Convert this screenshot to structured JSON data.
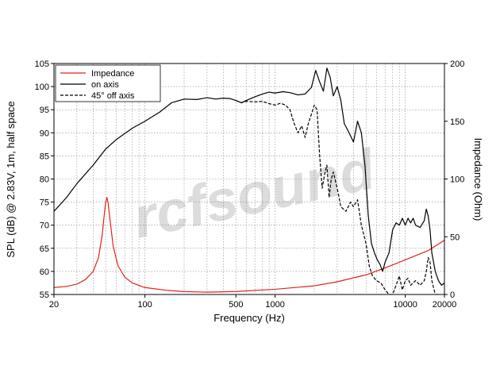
{
  "chart_data": {
    "type": "line",
    "title": "",
    "xlabel": "Frequency (Hz)",
    "ylabel": "SPL (dB) @ 2.83V, 1m, half space",
    "y2label": "Impedance (Ohm)",
    "x_scale": "log",
    "xlim": [
      20,
      20000
    ],
    "ylim": [
      55,
      105
    ],
    "y2lim": [
      0,
      200
    ],
    "x_ticks": [
      {
        "value": 20,
        "label": "20"
      },
      {
        "value": 100,
        "label": "100"
      },
      {
        "value": 500,
        "label": "500"
      },
      {
        "value": 1000,
        "label": "1000"
      },
      {
        "value": 10000,
        "label": "10000"
      },
      {
        "value": 20000,
        "label": "20000"
      }
    ],
    "y_ticks": [
      "55",
      "60",
      "65",
      "70",
      "75",
      "80",
      "85",
      "90",
      "95",
      "100",
      "105"
    ],
    "y2_ticks": [
      "0",
      "50",
      "100",
      "150",
      "200"
    ],
    "grid": true,
    "legend_position": "top-left",
    "watermark": "rcfsound",
    "series": [
      {
        "name": "Impedance",
        "axis": "right",
        "color": "#e0231b",
        "dash": "solid",
        "points": [
          [
            20,
            6
          ],
          [
            25,
            7
          ],
          [
            30,
            9
          ],
          [
            35,
            13
          ],
          [
            40,
            20
          ],
          [
            44,
            32
          ],
          [
            47,
            52
          ],
          [
            49,
            72
          ],
          [
            50,
            80
          ],
          [
            51,
            84
          ],
          [
            52,
            80
          ],
          [
            54,
            64
          ],
          [
            57,
            42
          ],
          [
            62,
            25
          ],
          [
            70,
            15
          ],
          [
            80,
            10
          ],
          [
            100,
            6
          ],
          [
            150,
            3.5
          ],
          [
            200,
            2.5
          ],
          [
            300,
            2
          ],
          [
            500,
            2.6
          ],
          [
            1000,
            4.5
          ],
          [
            2000,
            7.5
          ],
          [
            3000,
            11
          ],
          [
            5000,
            17
          ],
          [
            7000,
            23
          ],
          [
            10000,
            30
          ],
          [
            15000,
            38
          ],
          [
            20000,
            47
          ]
        ]
      },
      {
        "name": "on axis",
        "axis": "left",
        "color": "#000000",
        "dash": "solid",
        "points": [
          [
            20,
            73
          ],
          [
            25,
            76
          ],
          [
            30,
            79
          ],
          [
            40,
            83
          ],
          [
            50,
            86.5
          ],
          [
            60,
            88.5
          ],
          [
            80,
            91
          ],
          [
            100,
            92.5
          ],
          [
            130,
            94.5
          ],
          [
            160,
            96.5
          ],
          [
            200,
            97.3
          ],
          [
            250,
            97.2
          ],
          [
            300,
            97.6
          ],
          [
            350,
            97.3
          ],
          [
            400,
            97.5
          ],
          [
            450,
            97.4
          ],
          [
            500,
            97
          ],
          [
            550,
            96.5
          ],
          [
            600,
            97
          ],
          [
            700,
            97.8
          ],
          [
            800,
            98.4
          ],
          [
            900,
            98.8
          ],
          [
            1000,
            98.6
          ],
          [
            1150,
            98.9
          ],
          [
            1300,
            98.7
          ],
          [
            1500,
            98.2
          ],
          [
            1700,
            98.4
          ],
          [
            1900,
            99.8
          ],
          [
            2050,
            103.5
          ],
          [
            2200,
            101
          ],
          [
            2350,
            99
          ],
          [
            2500,
            104
          ],
          [
            2650,
            102
          ],
          [
            2800,
            98
          ],
          [
            3000,
            100
          ],
          [
            3200,
            97
          ],
          [
            3400,
            92
          ],
          [
            3700,
            90
          ],
          [
            4000,
            88
          ],
          [
            4300,
            92.5
          ],
          [
            4600,
            90
          ],
          [
            4900,
            83
          ],
          [
            5200,
            72
          ],
          [
            5500,
            66
          ],
          [
            5800,
            64
          ],
          [
            6100,
            62.5
          ],
          [
            6400,
            61.5
          ],
          [
            6700,
            60
          ],
          [
            7000,
            62
          ],
          [
            7500,
            64
          ],
          [
            8000,
            69
          ],
          [
            8500,
            70.5
          ],
          [
            9000,
            70
          ],
          [
            9500,
            71.5
          ],
          [
            10000,
            70
          ],
          [
            10500,
            71.5
          ],
          [
            11000,
            70.5
          ],
          [
            11500,
            71.5
          ],
          [
            12000,
            70
          ],
          [
            13000,
            69.5
          ],
          [
            14000,
            71
          ],
          [
            14500,
            73.5
          ],
          [
            15000,
            72
          ],
          [
            15500,
            69
          ],
          [
            16000,
            64
          ],
          [
            17000,
            60
          ],
          [
            18000,
            58
          ],
          [
            19000,
            57
          ],
          [
            20000,
            57.5
          ]
        ]
      },
      {
        "name": "45° off axis",
        "axis": "left",
        "color": "#000000",
        "dash": "dashed",
        "points": [
          [
            500,
            97
          ],
          [
            550,
            96.5
          ],
          [
            600,
            96.8
          ],
          [
            700,
            96.7
          ],
          [
            800,
            96.8
          ],
          [
            900,
            96.3
          ],
          [
            1000,
            96
          ],
          [
            1100,
            96.4
          ],
          [
            1200,
            96
          ],
          [
            1300,
            95
          ],
          [
            1400,
            92
          ],
          [
            1500,
            90
          ],
          [
            1600,
            91.5
          ],
          [
            1700,
            89
          ],
          [
            1800,
            92
          ],
          [
            1900,
            94
          ],
          [
            2000,
            96
          ],
          [
            2100,
            95
          ],
          [
            2200,
            85
          ],
          [
            2300,
            78
          ],
          [
            2400,
            81
          ],
          [
            2500,
            83
          ],
          [
            2600,
            76
          ],
          [
            2700,
            80
          ],
          [
            2800,
            81.5
          ],
          [
            3000,
            78
          ],
          [
            3200,
            74
          ],
          [
            3500,
            73
          ],
          [
            3800,
            75
          ],
          [
            4000,
            74
          ],
          [
            4300,
            75.5
          ],
          [
            4600,
            70
          ],
          [
            5000,
            66
          ],
          [
            5300,
            61
          ],
          [
            5600,
            59
          ],
          [
            6000,
            58
          ],
          [
            6500,
            57.5
          ],
          [
            7000,
            56
          ],
          [
            7500,
            55
          ],
          [
            8000,
            55
          ],
          [
            8500,
            57
          ],
          [
            9000,
            59
          ],
          [
            9500,
            56
          ],
          [
            10000,
            58
          ],
          [
            10500,
            58.5
          ],
          [
            11000,
            57
          ],
          [
            12000,
            58
          ],
          [
            13000,
            57
          ],
          [
            14000,
            58
          ],
          [
            14500,
            60
          ],
          [
            15000,
            63
          ],
          [
            15500,
            62
          ],
          [
            16000,
            58
          ],
          [
            17000,
            55
          ],
          [
            18000,
            55
          ]
        ]
      }
    ]
  }
}
